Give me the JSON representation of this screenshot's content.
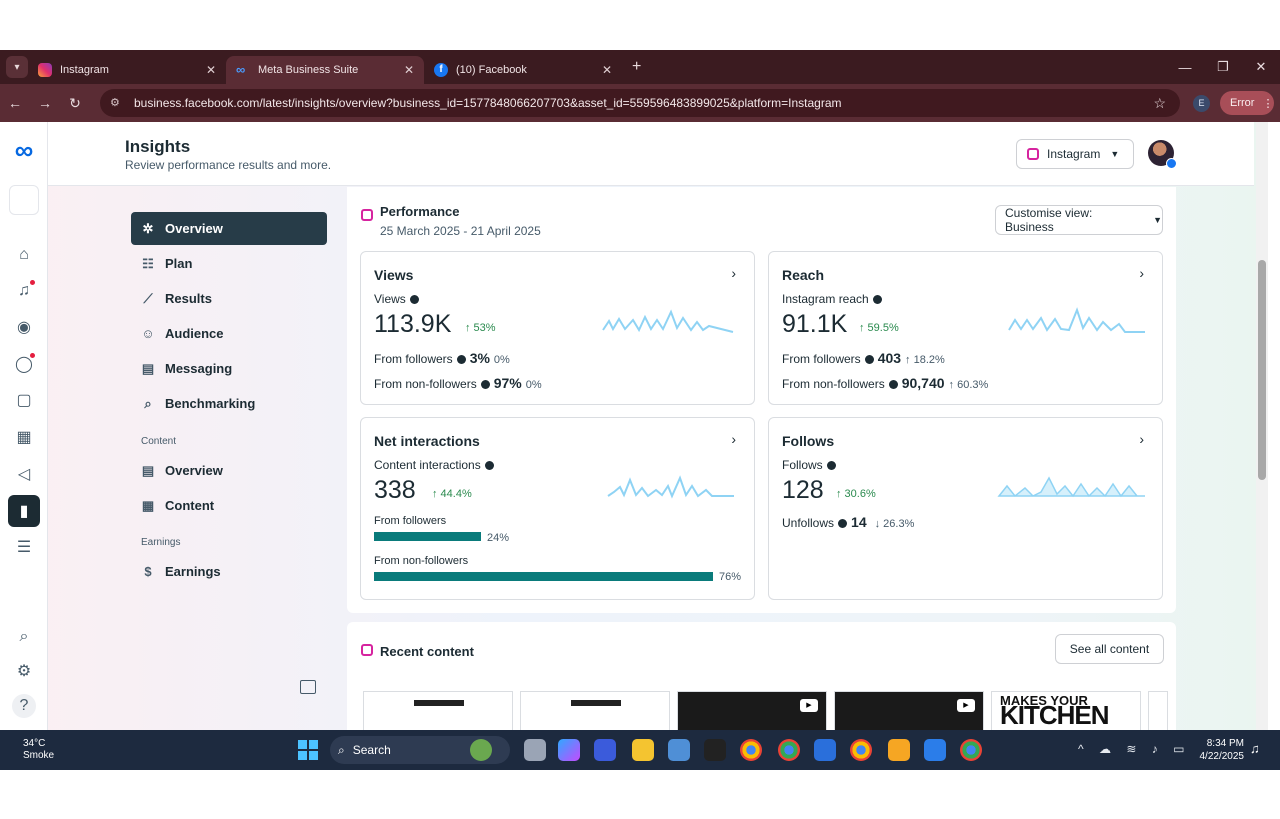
{
  "browser": {
    "tabs": [
      {
        "label": "Instagram",
        "close": "✕"
      },
      {
        "label": "Meta Business Suite",
        "close": "✕"
      },
      {
        "label": "(10) Facebook",
        "close": "✕"
      }
    ],
    "new_tab": "+",
    "url": "business.facebook.com/latest/insights/overview?business_id=1577848066207703&asset_id=559596483899025&platform=Instagram",
    "profile_initial": "E",
    "error_label": "Error"
  },
  "header": {
    "title": "Insights",
    "subtitle": "Review performance results and more.",
    "platform_select": "Instagram"
  },
  "sidebar": {
    "items": [
      {
        "label": "Overview",
        "icon": "overview-icon"
      },
      {
        "label": "Plan",
        "icon": "plan-icon"
      },
      {
        "label": "Results",
        "icon": "results-icon"
      },
      {
        "label": "Audience",
        "icon": "audience-icon"
      },
      {
        "label": "Messaging",
        "icon": "messaging-icon"
      },
      {
        "label": "Benchmarking",
        "icon": "benchmarking-icon"
      }
    ],
    "content_heading": "Content",
    "content_items": [
      {
        "label": "Overview",
        "icon": "content-overview-icon"
      },
      {
        "label": "Content",
        "icon": "content-table-icon"
      }
    ],
    "earnings_heading": "Earnings",
    "earnings_items": [
      {
        "label": "Earnings",
        "icon": "dollar-icon"
      }
    ]
  },
  "performance": {
    "title": "Performance",
    "date_range": "25 March 2025 - 21 April 2025",
    "customise_view": "Customise view: Business",
    "views": {
      "title": "Views",
      "label": "Views",
      "value": "113.9K",
      "delta": "↑ 53%",
      "followers_label": "From followers",
      "followers_value": "3%",
      "followers_delta": "0%",
      "non_followers_label": "From non-followers",
      "non_followers_value": "97%",
      "non_followers_delta": "0%"
    },
    "reach": {
      "title": "Reach",
      "label": "Instagram reach",
      "value": "91.1K",
      "delta": "↑ 59.5%",
      "followers_label": "From followers",
      "followers_value": "403",
      "followers_delta": "↑ 18.2%",
      "non_followers_label": "From non-followers",
      "non_followers_value": "90,740",
      "non_followers_delta": "↑ 60.3%"
    },
    "interactions": {
      "title": "Net interactions",
      "label": "Content interactions",
      "value": "338",
      "delta": "↑ 44.4%",
      "followers_label": "From followers",
      "followers_pct": "24%",
      "followers_share": 0.24,
      "non_followers_label": "From non-followers",
      "non_followers_pct": "76%",
      "non_followers_share": 0.76
    },
    "follows": {
      "title": "Follows",
      "label": "Follows",
      "value": "128",
      "delta": "↑ 30.6%",
      "unfollows_label": "Unfollows",
      "unfollows_value": "14",
      "unfollows_delta": "↓ 26.3%"
    }
  },
  "recent": {
    "title": "Recent content",
    "see_all": "See all content",
    "thumb_texts": [
      "MAKES YOUR",
      "KITCHEN"
    ]
  },
  "taskbar": {
    "temperature": "34°C",
    "weather": "Smoke",
    "search": "Search",
    "time": "8:34 PM",
    "date": "4/22/2025"
  },
  "colors": {
    "accent_bar": "#0a7b7b",
    "sparkline": "#8fd3f4",
    "positive": "#2a8a4e",
    "negative": "#b03a3a",
    "nav_active": "#273c48"
  }
}
